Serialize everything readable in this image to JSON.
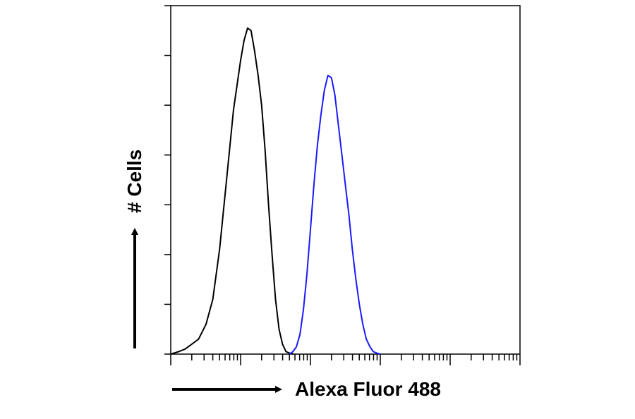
{
  "chart_data": {
    "type": "line",
    "title": "",
    "xlabel": "Alexa Fluor 488",
    "ylabel": "# Cells",
    "x_scale": "log",
    "xlim": [
      1,
      100000
    ],
    "ylim": [
      0,
      7
    ],
    "y_major_ticks": [
      0,
      1,
      2,
      3,
      4,
      5,
      6,
      7
    ],
    "x_tick_labels": "none",
    "y_tick_labels": "none",
    "series": [
      {
        "color": "#000000",
        "x": [
          1.0,
          1.3,
          1.6,
          2.0,
          2.5,
          3.2,
          4.0,
          5.0,
          6.3,
          7.9,
          10,
          11.2,
          12.6,
          14.1,
          15.8,
          17.8,
          20.0,
          22.4,
          25.1,
          28.2,
          31.6,
          35.5,
          39.8,
          44.7,
          50.1,
          56.2
        ],
        "y": [
          0.0,
          0.05,
          0.1,
          0.2,
          0.3,
          0.6,
          1.1,
          2.1,
          3.5,
          4.9,
          5.9,
          6.3,
          6.55,
          6.5,
          6.1,
          5.6,
          5.0,
          4.1,
          3.0,
          2.0,
          1.1,
          0.5,
          0.2,
          0.05,
          0.02,
          0.0
        ]
      },
      {
        "color": "#1a1aff",
        "x": [
          50.1,
          56.2,
          63.1,
          70.8,
          79.4,
          89.1,
          100,
          112,
          126,
          141,
          158,
          178,
          200,
          224,
          251,
          282,
          316,
          355,
          398,
          447,
          501,
          562,
          631,
          708,
          794,
          891,
          1000
        ],
        "y": [
          0.0,
          0.05,
          0.15,
          0.4,
          0.9,
          1.6,
          2.5,
          3.4,
          4.2,
          4.8,
          5.3,
          5.6,
          5.55,
          5.2,
          4.6,
          4.0,
          3.4,
          2.8,
          2.1,
          1.5,
          1.0,
          0.6,
          0.3,
          0.15,
          0.05,
          0.02,
          0.0
        ]
      }
    ]
  }
}
